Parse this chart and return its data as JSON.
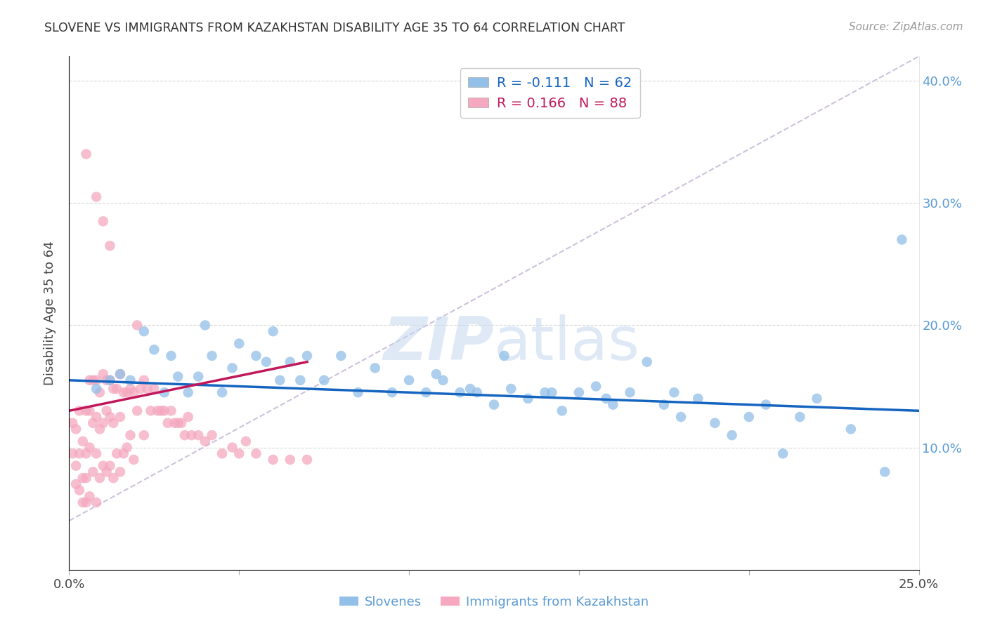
{
  "title": "SLOVENE VS IMMIGRANTS FROM KAZAKHSTAN DISABILITY AGE 35 TO 64 CORRELATION CHART",
  "source": "Source: ZipAtlas.com",
  "ylabel": "Disability Age 35 to 64",
  "xlim": [
    0.0,
    0.25
  ],
  "ylim": [
    0.0,
    0.42
  ],
  "slovene_color": "#92c0e8",
  "kazakh_color": "#f5a8bf",
  "slovene_line_color": "#1565c0",
  "kazakh_line_color": "#c2185b",
  "diag_line_color": "#c8bcd8",
  "grid_color": "#d8d8d8",
  "R_slovene": -0.111,
  "N_slovene": 62,
  "R_kazakh": 0.166,
  "N_kazakh": 88,
  "background_color": "#ffffff",
  "right_tick_color": "#5b9bd5",
  "slovene_x": [
    0.008,
    0.012,
    0.015,
    0.018,
    0.022,
    0.025,
    0.028,
    0.03,
    0.032,
    0.035,
    0.038,
    0.04,
    0.042,
    0.045,
    0.048,
    0.05,
    0.055,
    0.058,
    0.06,
    0.062,
    0.065,
    0.068,
    0.07,
    0.075,
    0.08,
    0.085,
    0.09,
    0.095,
    0.1,
    0.105,
    0.108,
    0.11,
    0.115,
    0.118,
    0.12,
    0.125,
    0.128,
    0.13,
    0.135,
    0.14,
    0.142,
    0.145,
    0.15,
    0.155,
    0.158,
    0.16,
    0.165,
    0.17,
    0.175,
    0.178,
    0.18,
    0.185,
    0.19,
    0.195,
    0.2,
    0.205,
    0.21,
    0.215,
    0.22,
    0.23,
    0.24,
    0.245
  ],
  "slovene_y": [
    0.148,
    0.155,
    0.16,
    0.155,
    0.195,
    0.18,
    0.145,
    0.175,
    0.158,
    0.145,
    0.158,
    0.2,
    0.175,
    0.145,
    0.165,
    0.185,
    0.175,
    0.17,
    0.195,
    0.155,
    0.17,
    0.155,
    0.175,
    0.155,
    0.175,
    0.145,
    0.165,
    0.145,
    0.155,
    0.145,
    0.16,
    0.155,
    0.145,
    0.148,
    0.145,
    0.135,
    0.175,
    0.148,
    0.14,
    0.145,
    0.145,
    0.13,
    0.145,
    0.15,
    0.14,
    0.135,
    0.145,
    0.17,
    0.135,
    0.145,
    0.125,
    0.14,
    0.12,
    0.11,
    0.125,
    0.135,
    0.095,
    0.125,
    0.14,
    0.115,
    0.08,
    0.27
  ],
  "kazakh_x": [
    0.001,
    0.001,
    0.002,
    0.002,
    0.002,
    0.003,
    0.003,
    0.003,
    0.004,
    0.004,
    0.004,
    0.005,
    0.005,
    0.005,
    0.005,
    0.006,
    0.006,
    0.006,
    0.006,
    0.007,
    0.007,
    0.007,
    0.008,
    0.008,
    0.008,
    0.008,
    0.009,
    0.009,
    0.009,
    0.01,
    0.01,
    0.01,
    0.011,
    0.011,
    0.011,
    0.012,
    0.012,
    0.012,
    0.013,
    0.013,
    0.013,
    0.014,
    0.014,
    0.015,
    0.015,
    0.015,
    0.016,
    0.016,
    0.017,
    0.017,
    0.018,
    0.018,
    0.019,
    0.019,
    0.02,
    0.02,
    0.021,
    0.022,
    0.022,
    0.023,
    0.024,
    0.025,
    0.026,
    0.027,
    0.028,
    0.029,
    0.03,
    0.031,
    0.032,
    0.033,
    0.034,
    0.035,
    0.036,
    0.038,
    0.04,
    0.042,
    0.045,
    0.048,
    0.05,
    0.052,
    0.055,
    0.06,
    0.065,
    0.07,
    0.005,
    0.008,
    0.01,
    0.012
  ],
  "kazakh_y": [
    0.12,
    0.095,
    0.115,
    0.085,
    0.07,
    0.13,
    0.095,
    0.065,
    0.105,
    0.075,
    0.055,
    0.13,
    0.095,
    0.075,
    0.055,
    0.155,
    0.13,
    0.1,
    0.06,
    0.155,
    0.12,
    0.08,
    0.155,
    0.125,
    0.095,
    0.055,
    0.145,
    0.115,
    0.075,
    0.16,
    0.12,
    0.085,
    0.155,
    0.13,
    0.08,
    0.155,
    0.125,
    0.085,
    0.148,
    0.12,
    0.075,
    0.148,
    0.095,
    0.16,
    0.125,
    0.08,
    0.145,
    0.095,
    0.145,
    0.1,
    0.148,
    0.11,
    0.145,
    0.09,
    0.2,
    0.13,
    0.148,
    0.155,
    0.11,
    0.148,
    0.13,
    0.148,
    0.13,
    0.13,
    0.13,
    0.12,
    0.13,
    0.12,
    0.12,
    0.12,
    0.11,
    0.125,
    0.11,
    0.11,
    0.105,
    0.11,
    0.095,
    0.1,
    0.095,
    0.105,
    0.095,
    0.09,
    0.09,
    0.09,
    0.34,
    0.305,
    0.285,
    0.265
  ]
}
